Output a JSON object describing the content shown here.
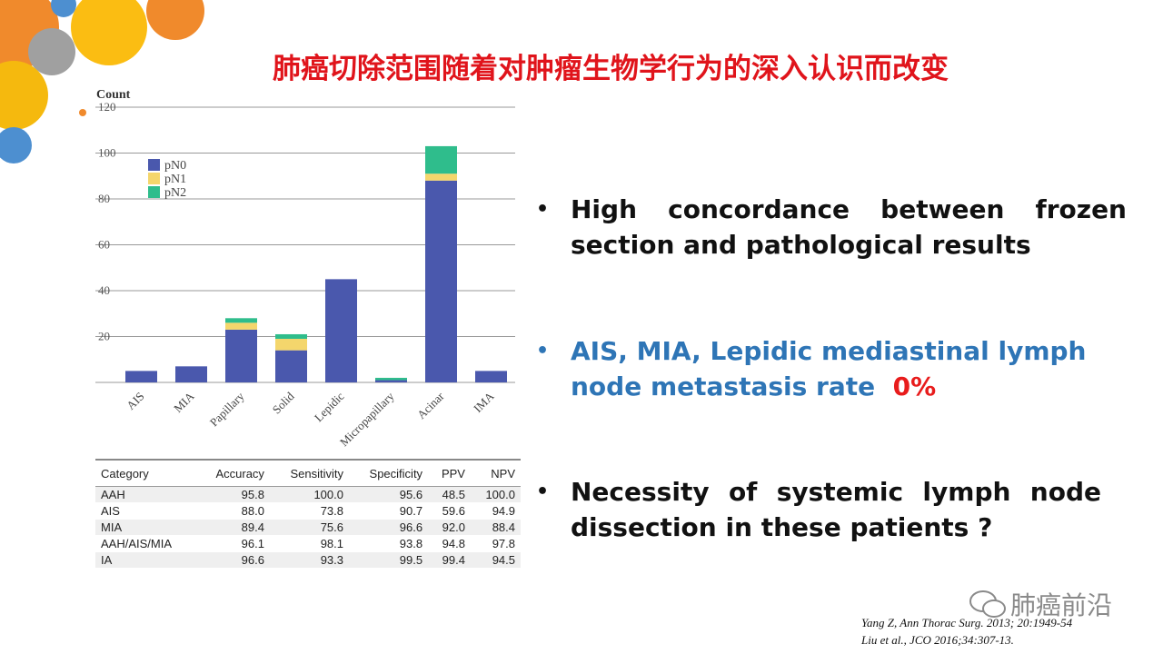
{
  "slide": {
    "title": "肺癌切除范围随着对肿瘤生物学行为的深入认识而改变"
  },
  "chart_data": {
    "type": "stacked_bar",
    "ylabel": "Count",
    "categories": [
      "AIS",
      "MIA",
      "Papillary",
      "Solid",
      "Lepidic",
      "Micropapillary",
      "Acinar",
      "IMA"
    ],
    "series": [
      {
        "name": "pN0",
        "color": "#4a58ad",
        "values": [
          5,
          7,
          23,
          14,
          45,
          1,
          88,
          5
        ]
      },
      {
        "name": "pN1",
        "color": "#f4d66c",
        "values": [
          0,
          0,
          3,
          5,
          0,
          0,
          3,
          0
        ]
      },
      {
        "name": "pN2",
        "color": "#2fbd8c",
        "values": [
          0,
          0,
          2,
          2,
          0,
          1,
          12,
          0
        ]
      }
    ],
    "ylim": [
      0,
      120
    ],
    "yticks": [
      0,
      20,
      40,
      60,
      80,
      100,
      120
    ],
    "grid": true,
    "legend": "upper-left"
  },
  "table": {
    "header": [
      "Category",
      "Accuracy",
      "Sensitivity",
      "Specificity",
      "PPV",
      "NPV"
    ],
    "rows": [
      [
        "AAH",
        "95.8",
        "100.0",
        "95.6",
        "48.5",
        "100.0"
      ],
      [
        "AIS",
        "88.0",
        "73.8",
        "90.7",
        "59.6",
        "94.9"
      ],
      [
        "MIA",
        "89.4",
        "75.6",
        "96.6",
        "92.0",
        "88.4"
      ],
      [
        "AAH/AIS/MIA",
        "96.1",
        "98.1",
        "93.8",
        "94.8",
        "97.8"
      ],
      [
        "IA",
        "96.6",
        "93.3",
        "99.5",
        "99.4",
        "94.5"
      ]
    ]
  },
  "bullets": [
    {
      "text": "High concordance between frozen section and pathological results"
    },
    {
      "text": "AIS, MIA, Lepidic mediastinal lymph node metastasis rate",
      "highlight": "0%"
    },
    {
      "text": "Necessity of systemic lymph node dissection in these patients ?"
    }
  ],
  "watermark": "肺癌前沿",
  "references": [
    "Yang Z, Ann Thorac Surg. 2013; 20:1949-54",
    "Liu et al., JCO 2016;34:307-13."
  ]
}
